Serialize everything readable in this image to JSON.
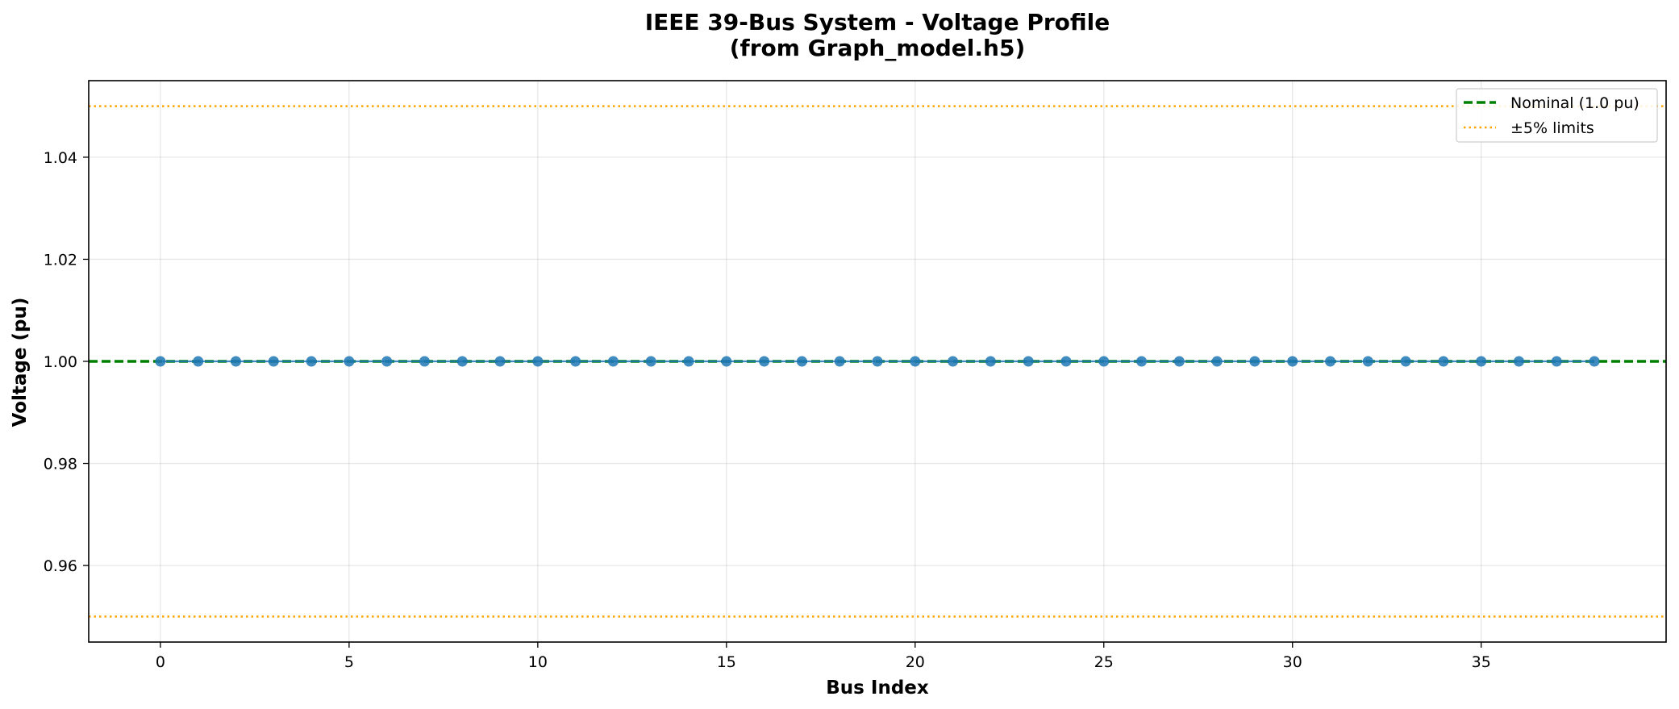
{
  "chart_data": {
    "type": "line",
    "title": "IEEE 39-Bus System - Voltage Profile",
    "subtitle": "(from Graph_model.h5)",
    "xlabel": "Bus Index",
    "ylabel": "Voltage (pu)",
    "xlim": [
      -1.9,
      39.9
    ],
    "ylim": [
      0.945,
      1.055
    ],
    "xticks": [
      0,
      5,
      10,
      15,
      20,
      25,
      30,
      35
    ],
    "yticks": [
      0.96,
      0.98,
      1.0,
      1.02,
      1.04
    ],
    "ytick_labels": [
      "0.96",
      "0.98",
      "1.00",
      "1.02",
      "1.04"
    ],
    "grid": true,
    "legend_position": "top-right",
    "series": [
      {
        "x": [
          0,
          1,
          2,
          3,
          4,
          5,
          6,
          7,
          8,
          9,
          10,
          11,
          12,
          13,
          14,
          15,
          16,
          17,
          18,
          19,
          20,
          21,
          22,
          23,
          24,
          25,
          26,
          27,
          28,
          29,
          30,
          31,
          32,
          33,
          34,
          35,
          36,
          37,
          38
        ],
        "values": [
          1.0,
          1.0,
          1.0,
          1.0,
          1.0,
          1.0,
          1.0,
          1.0,
          1.0,
          1.0,
          1.0,
          1.0,
          1.0,
          1.0,
          1.0,
          1.0,
          1.0,
          1.0,
          1.0,
          1.0,
          1.0,
          1.0,
          1.0,
          1.0,
          1.0,
          1.0,
          1.0,
          1.0,
          1.0,
          1.0,
          1.0,
          1.0,
          1.0,
          1.0,
          1.0,
          1.0,
          1.0,
          1.0,
          1.0
        ],
        "color": "#1f77b4",
        "marker": "circle"
      }
    ],
    "reference_lines": [
      {
        "name": "Nominal (1.0 pu)",
        "y": [
          1.0
        ],
        "color": "#008000",
        "style": "dashed"
      },
      {
        "name": "±5% limits",
        "y": [
          1.05,
          0.95
        ],
        "color": "#ffa500",
        "style": "dotted"
      }
    ]
  }
}
